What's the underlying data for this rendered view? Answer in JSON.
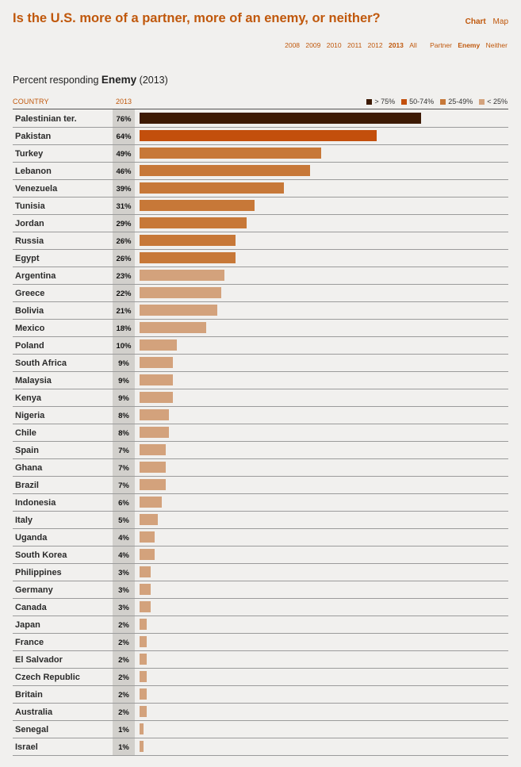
{
  "header": {
    "title": "Is the U.S. more of a partner, more of an enemy, or neither?",
    "view_tabs": [
      "Chart",
      "Map"
    ],
    "active_view": "Chart",
    "years": [
      "2008",
      "2009",
      "2010",
      "2011",
      "2012",
      "2013",
      "All"
    ],
    "active_year": "2013",
    "answers": [
      "Partner",
      "Enemy",
      "Neither"
    ],
    "active_answer": "Enemy"
  },
  "subtitle": {
    "prefix": "Percent responding",
    "emphasis": "Enemy",
    "suffix": "(2013)"
  },
  "columns": {
    "country": "COUNTRY",
    "year": "2013"
  },
  "legend": [
    {
      "label": "> 75%",
      "color": "#3d1a04"
    },
    {
      "label": "50-74%",
      "color": "#c34f0c"
    },
    {
      "label": "25-49%",
      "color": "#c77838"
    },
    {
      "label": "< 25%",
      "color": "#d3a27c"
    }
  ],
  "chart_data": {
    "type": "bar",
    "orientation": "horizontal",
    "title": "Is the U.S. more of a partner, more of an enemy, or neither?",
    "subtitle": "Percent responding Enemy (2013)",
    "xlim": [
      0,
      100
    ],
    "grid": false,
    "categories": [
      "Palestinian ter.",
      "Pakistan",
      "Turkey",
      "Lebanon",
      "Venezuela",
      "Tunisia",
      "Jordan",
      "Russia",
      "Egypt",
      "Argentina",
      "Greece",
      "Bolivia",
      "Mexico",
      "Poland",
      "South Africa",
      "Malaysia",
      "Kenya",
      "Nigeria",
      "Chile",
      "Spain",
      "Ghana",
      "Brazil",
      "Indonesia",
      "Italy",
      "Uganda",
      "South Korea",
      "Philippines",
      "Germany",
      "Canada",
      "Japan",
      "France",
      "El Salvador",
      "Czech Republic",
      "Britain",
      "Australia",
      "Senegal",
      "Israel"
    ],
    "values": [
      76,
      64,
      49,
      46,
      39,
      31,
      29,
      26,
      26,
      23,
      22,
      21,
      18,
      10,
      9,
      9,
      9,
      8,
      8,
      7,
      7,
      7,
      6,
      5,
      4,
      4,
      3,
      3,
      3,
      2,
      2,
      2,
      2,
      2,
      2,
      1,
      1
    ],
    "value_labels": [
      "76%",
      "64%",
      "49%",
      "46%",
      "39%",
      "31%",
      "29%",
      "26%",
      "26%",
      "23%",
      "22%",
      "21%",
      "18%",
      "10%",
      "9%",
      "9%",
      "9%",
      "8%",
      "8%",
      "7%",
      "7%",
      "7%",
      "6%",
      "5%",
      "4%",
      "4%",
      "3%",
      "3%",
      "3%",
      "2%",
      "2%",
      "2%",
      "2%",
      "2%",
      "2%",
      "1%",
      "1%"
    ]
  }
}
